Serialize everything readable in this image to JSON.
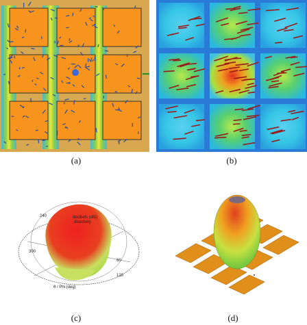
{
  "figure": {
    "panels": [
      {
        "id": "a",
        "caption": "(a)"
      },
      {
        "id": "b",
        "caption": "(b)"
      },
      {
        "id": "c",
        "caption": "(c)",
        "angle_labels": [
          "240",
          "300",
          "60",
          "120"
        ],
        "annotations": [
          "decibels (dBi)",
          "directivity",
          "θ / Phi (deg)"
        ]
      },
      {
        "id": "d",
        "caption": "(d)"
      }
    ]
  }
}
